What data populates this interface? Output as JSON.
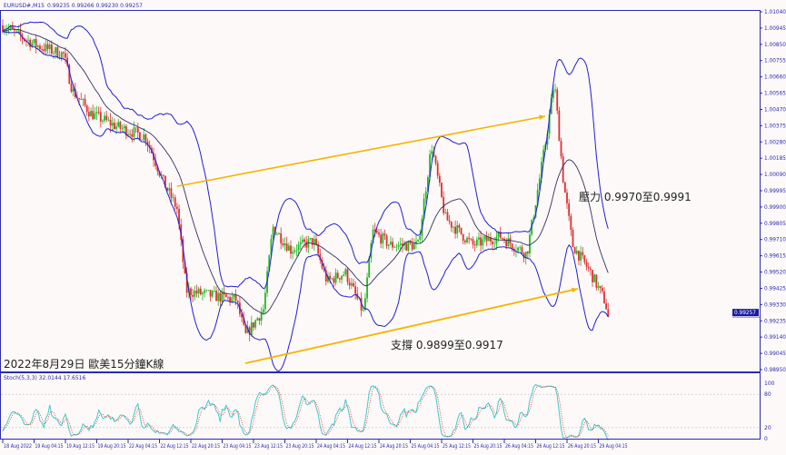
{
  "header": {
    "symbol": "EURUSD#,M15",
    "ohlc": "0.99235 0.99266 0.99230 0.99257"
  },
  "stoch_header": "Stoch(5,3,3) 32.0144 17.6516",
  "annotations": {
    "title": "2022年8月29日 歐美15分鐘K線",
    "resistance": "壓力 0.9970至0.9991",
    "support": "支撐 0.9899至0.9917"
  },
  "chart_data": {
    "type": "candlestick",
    "title": "2022年8月29日 歐美15分鐘K線",
    "symbol": "EURUSD#",
    "timeframe": "M15",
    "price_ticks": [
      "1.01040",
      "1.00945",
      "1.00850",
      "1.00755",
      "1.00660",
      "1.00565",
      "1.00470",
      "1.00375",
      "1.00280",
      "1.00185",
      "1.00090",
      "0.99995",
      "0.99900",
      "0.99805",
      "0.99710",
      "0.99615",
      "0.99520",
      "0.99425",
      "0.99330",
      "0.99235",
      "0.99140",
      "0.99045",
      "0.98950"
    ],
    "ylim": [
      0.9895,
      1.0104
    ],
    "time_ticks": [
      "18 Aug 2022",
      "19 Aug 04:15",
      "19 Aug 12:15",
      "19 Aug 20:15",
      "22 Aug 04:15",
      "22 Aug 12:15",
      "22 Aug 20:15",
      "23 Aug 04:15",
      "23 Aug 12:15",
      "23 Aug 20:15",
      "24 Aug 04:15",
      "24 Aug 12:15",
      "24 Aug 20:15",
      "25 Aug 04:15",
      "25 Aug 12:15",
      "25 Aug 20:15",
      "26 Aug 04:15",
      "26 Aug 12:15",
      "26 Aug 20:15",
      "29 Aug 04:15"
    ],
    "current_price": "0.99257",
    "close_path": [
      [
        "18 Aug 20:15",
        1.0096
      ],
      [
        "19 Aug 04:50",
        1.00844
      ],
      [
        "19 Aug 11:45",
        1.00791
      ],
      [
        "19 Aug 14:05",
        1.00578
      ],
      [
        "19 Aug 18:45",
        1.00446
      ],
      [
        "22 Aug 01:40",
        1.00366
      ],
      [
        "22 Aug 08:40",
        1.00313
      ],
      [
        "22 Aug 13:15",
        1.00048
      ],
      [
        "22 Aug 16:45",
        0.99889
      ],
      [
        "22 Aug 19:05",
        0.99411
      ],
      [
        "23 Aug 00:55",
        0.99385
      ],
      [
        "23 Aug 07:50",
        0.99358
      ],
      [
        "23 Aug 10:10",
        0.99146
      ],
      [
        "23 Aug 14:50",
        0.99305
      ],
      [
        "23 Aug 17:10",
        0.99783
      ],
      [
        "23 Aug 21:45",
        0.9965
      ],
      [
        "24 Aug 03:35",
        0.99703
      ],
      [
        "24 Aug 07:00",
        0.99464
      ],
      [
        "24 Aug 11:40",
        0.99517
      ],
      [
        "24 Aug 16:20",
        0.99279
      ],
      [
        "24 Aug 18:40",
        0.99756
      ],
      [
        "24 Aug 23:15",
        0.99677
      ],
      [
        "25 Aug 06:15",
        0.99677
      ],
      [
        "25 Aug 09:40",
        1.0026
      ],
      [
        "25 Aug 13:10",
        0.99836
      ],
      [
        "25 Aug 20:10",
        0.99677
      ],
      [
        "26 Aug 03:05",
        0.9973
      ],
      [
        "26 Aug 10:00",
        0.99624
      ],
      [
        "26 Aug 14:40",
        1.0026
      ],
      [
        "26 Aug 17:00",
        1.00632
      ],
      [
        "26 Aug 19:20",
        1.00048
      ],
      [
        "26 Aug 21:40",
        0.99677
      ],
      [
        "29 Aug 02:15",
        0.99517
      ],
      [
        "29 Aug 05:45",
        0.99358
      ],
      [
        "29 Aug 07:00",
        0.99257
      ]
    ],
    "trendlines": [
      {
        "from": [
          "22 Aug 16:45",
          1.00021
        ],
        "to": [
          "26 Aug 14:40",
          1.0043
        ],
        "color": "#f5b400",
        "arrow": true
      },
      {
        "from": [
          "23 Aug 10:10",
          0.98987
        ],
        "to": [
          "26 Aug 23:00",
          0.99422
        ],
        "color": "#f5b400",
        "arrow": true
      }
    ],
    "stochastic": {
      "k_period": 5,
      "d_period": 3,
      "slowing": 3,
      "k": 32.0144,
      "d": 17.6516,
      "levels": [
        20,
        80
      ],
      "ylim": [
        0,
        100
      ],
      "ticks": [
        "100",
        "80",
        "20",
        "0"
      ]
    },
    "colors": {
      "bull": "#22b822",
      "bear": "#e03030",
      "bands": "#2020d0",
      "ma": "#303060",
      "stoch_main": "#40c8c8",
      "stoch_signal": "#e03030",
      "axis": "#2b2bb0",
      "trend": "#f5b400"
    },
    "grid": false
  }
}
